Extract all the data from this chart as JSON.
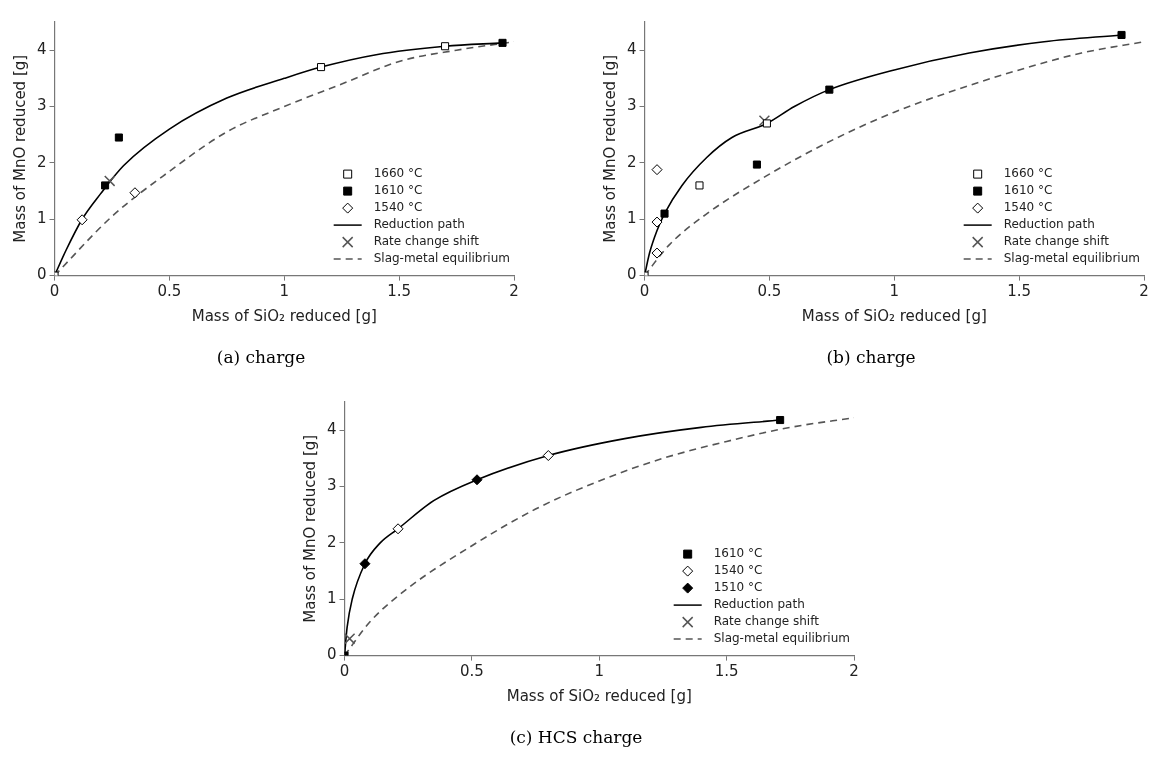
{
  "chart_data": [
    {
      "type": "scatter",
      "title": "(a) charge",
      "xlabel": "Mass of SiO₂ reduced [g]",
      "ylabel": "Mass of MnO reduced [g]",
      "xlim": [
        0,
        2
      ],
      "ylim": [
        0,
        4.5
      ],
      "xticks": [
        0,
        0.5,
        1,
        1.5,
        2
      ],
      "yticks": [
        0,
        1,
        2,
        3,
        4
      ],
      "grid": false,
      "legend": "bottom right",
      "series": [
        {
          "name": "1660 °C",
          "marker": "square",
          "color": "#ffffff",
          "x": [
            0,
            1.16,
            1.7
          ],
          "values": [
            0,
            3.7,
            4.07
          ]
        },
        {
          "name": "1610 °C",
          "marker": "square",
          "color": "#000000",
          "x": [
            0.22,
            0.28,
            1.95
          ],
          "values": [
            1.6,
            2.45,
            4.13
          ]
        },
        {
          "name": "1540 °C",
          "marker": "diamond",
          "color": "#ffffff",
          "x": [
            0.12,
            0.35
          ],
          "values": [
            0.99,
            1.47
          ]
        },
        {
          "name": "Reduction path",
          "type": "line",
          "marker": "none",
          "line_style": "solid",
          "color": "#000000",
          "x": [
            0,
            0.05,
            0.12,
            0.2,
            0.3,
            0.5,
            0.75,
            1.0,
            1.16,
            1.4,
            1.7,
            1.95
          ],
          "values": [
            0,
            0.45,
            1.0,
            1.45,
            1.95,
            2.6,
            3.15,
            3.5,
            3.7,
            3.92,
            4.07,
            4.13
          ]
        },
        {
          "name": "Rate change shift",
          "marker": "cross",
          "color": "#555555",
          "x": [
            0.24
          ],
          "values": [
            1.68
          ]
        },
        {
          "name": "Slag-metal equilibrium",
          "type": "line",
          "marker": "none",
          "line_style": "dashed",
          "color": "#555555",
          "x": [
            0,
            0.25,
            0.5,
            0.75,
            1.0,
            1.25,
            1.5,
            1.75,
            2.0
          ],
          "values": [
            0,
            1.05,
            1.85,
            2.55,
            3.0,
            3.4,
            3.8,
            4.0,
            4.15
          ]
        }
      ]
    },
    {
      "type": "scatter",
      "title": "(b) charge",
      "xlabel": "Mass of SiO₂ reduced [g]",
      "ylabel": "Mass of MnO reduced [g]",
      "xlim": [
        0,
        2
      ],
      "ylim": [
        0,
        4.5
      ],
      "xticks": [
        0,
        0.5,
        1,
        1.5,
        2
      ],
      "yticks": [
        0,
        1,
        2,
        3,
        4
      ],
      "grid": false,
      "legend": "bottom right",
      "series": [
        {
          "name": "1660 °C",
          "marker": "square",
          "color": "#ffffff",
          "x": [
            0,
            0.22,
            0.49
          ],
          "values": [
            0,
            1.6,
            2.7
          ]
        },
        {
          "name": "1610 °C",
          "marker": "square",
          "color": "#000000",
          "x": [
            0.08,
            0.45,
            0.74,
            1.91
          ],
          "values": [
            1.1,
            1.97,
            3.3,
            4.27
          ]
        },
        {
          "name": "1540 °C",
          "marker": "diamond",
          "color": "#ffffff",
          "x": [
            0.05,
            0.05,
            0.05
          ],
          "values": [
            1.88,
            0.95,
            0.4
          ]
        },
        {
          "name": "Reduction path",
          "type": "line",
          "marker": "none",
          "line_style": "solid",
          "color": "#000000",
          "x": [
            0,
            0.02,
            0.05,
            0.08,
            0.15,
            0.25,
            0.35,
            0.49,
            0.6,
            0.74,
            1.0,
            1.3,
            1.6,
            1.91
          ],
          "values": [
            0,
            0.4,
            0.8,
            1.1,
            1.6,
            2.1,
            2.45,
            2.7,
            3.0,
            3.3,
            3.65,
            3.95,
            4.15,
            4.27
          ]
        },
        {
          "name": "Rate change shift",
          "marker": "cross",
          "color": "#555555",
          "x": [
            0.48
          ],
          "values": [
            2.75
          ]
        },
        {
          "name": "Slag-metal equilibrium",
          "type": "line",
          "marker": "none",
          "line_style": "dashed",
          "color": "#555555",
          "x": [
            0,
            0.1,
            0.25,
            0.5,
            0.75,
            1.0,
            1.25,
            1.5,
            1.75,
            2.0
          ],
          "values": [
            0,
            0.55,
            1.1,
            1.8,
            2.4,
            2.9,
            3.3,
            3.65,
            3.95,
            4.15
          ]
        }
      ]
    },
    {
      "type": "scatter",
      "title": "(c) HCS charge",
      "xlabel": "Mass of SiO₂ reduced [g]",
      "ylabel": "Mass of MnO reduced [g]",
      "xlim": [
        0,
        2
      ],
      "ylim": [
        0,
        4.5
      ],
      "xticks": [
        0,
        0.5,
        1,
        1.5,
        2
      ],
      "yticks": [
        0,
        1,
        2,
        3,
        4
      ],
      "grid": false,
      "legend": "bottom right",
      "series": [
        {
          "name": "1610 °C",
          "marker": "square",
          "color": "#000000",
          "x": [
            0,
            1.71
          ],
          "values": [
            0,
            4.18
          ]
        },
        {
          "name": "1540 °C",
          "marker": "diamond",
          "color": "#ffffff",
          "x": [
            0.21,
            0.8
          ],
          "values": [
            2.25,
            3.55
          ]
        },
        {
          "name": "1510 °C",
          "marker": "diamond",
          "color": "#000000",
          "x": [
            0.08,
            0.52
          ],
          "values": [
            1.63,
            3.12
          ]
        },
        {
          "name": "Reduction path",
          "type": "line",
          "marker": "none",
          "line_style": "solid",
          "color": "#000000",
          "x": [
            0,
            0.01,
            0.03,
            0.08,
            0.14,
            0.21,
            0.35,
            0.52,
            0.8,
            1.1,
            1.4,
            1.71
          ],
          "values": [
            0,
            0.5,
            1.0,
            1.63,
            2.0,
            2.25,
            2.75,
            3.12,
            3.55,
            3.85,
            4.05,
            4.18
          ]
        },
        {
          "name": "Rate change shift",
          "marker": "cross",
          "color": "#555555",
          "x": [
            0.02
          ],
          "values": [
            0.3
          ]
        },
        {
          "name": "Slag-metal equilibrium",
          "type": "line",
          "marker": "none",
          "line_style": "dashed",
          "color": "#555555",
          "x": [
            0,
            0.1,
            0.25,
            0.5,
            0.75,
            1.0,
            1.25,
            1.5,
            1.75,
            2.0
          ],
          "values": [
            0,
            0.6,
            1.2,
            1.95,
            2.6,
            3.1,
            3.5,
            3.8,
            4.05,
            4.22
          ]
        }
      ]
    }
  ]
}
